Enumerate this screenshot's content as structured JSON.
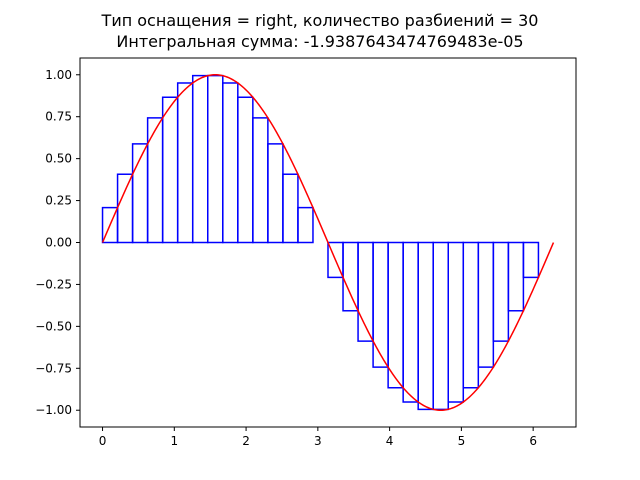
{
  "chart_data": {
    "type": "line",
    "title": "Тип оснащения = right, количество разбиений = 30",
    "subtitle": "Интегральная сумма: -1.9387643474769483e-05",
    "xlabel": "",
    "ylabel": "",
    "xlim": [
      -0.314,
      6.597
    ],
    "ylim": [
      -1.1,
      1.1
    ],
    "grid": false,
    "legend": "none",
    "x_ticks": [
      0,
      1,
      2,
      3,
      4,
      5,
      6
    ],
    "x_tick_labels": [
      "0",
      "1",
      "2",
      "3",
      "4",
      "5",
      "6"
    ],
    "y_ticks": [
      1.0,
      0.75,
      0.5,
      0.25,
      0.0,
      -0.25,
      -0.5,
      -0.75,
      -1.0
    ],
    "y_tick_labels": [
      "1.00",
      "0.75",
      "0.50",
      "0.25",
      "0.00",
      "−0.25",
      "−0.50",
      "−0.75",
      "−1.00"
    ],
    "function": {
      "name": "sin(x)",
      "x_start": 0,
      "x_end": 6.283,
      "color": "#ff0000"
    },
    "riemann_sum": {
      "method": "right",
      "partitions": 30,
      "x_start": 0,
      "x_end": 6.283,
      "color": "#0000ff",
      "rectangle_heights": [
        0.208,
        0.407,
        0.588,
        0.743,
        0.866,
        0.951,
        0.995,
        0.995,
        0.951,
        0.866,
        0.743,
        0.588,
        0.407,
        0.208,
        0.0,
        -0.208,
        -0.407,
        -0.588,
        -0.743,
        -0.866,
        -0.951,
        -0.995,
        -0.995,
        -0.951,
        -0.866,
        -0.743,
        -0.588,
        -0.407,
        -0.208,
        0.0
      ]
    }
  }
}
